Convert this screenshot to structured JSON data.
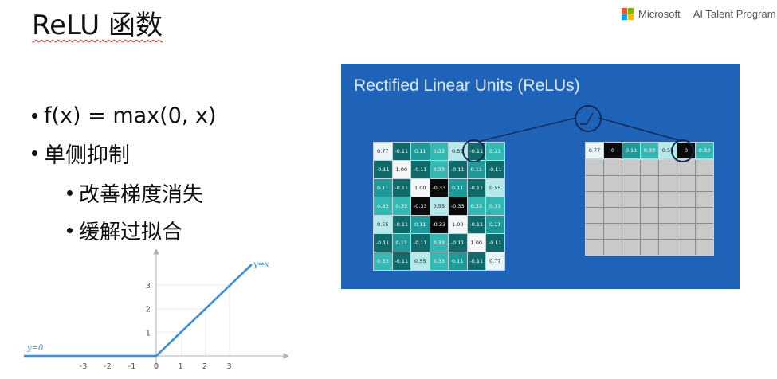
{
  "slide": {
    "title": "ReLU 函数",
    "brand": "Microsoft",
    "program": "AI Talent Program",
    "brand_colors": [
      "#f25022",
      "#7fba00",
      "#00a4ef",
      "#ffb900"
    ]
  },
  "bullets": {
    "item1": "f(x)  =  max(0, x)",
    "item2": "单侧抑制",
    "sub1": "改善梯度消失",
    "sub2": "缓解过拟合"
  },
  "plot": {
    "x_ticks": [
      "-3",
      "-2",
      "-1",
      "0",
      "1",
      "2",
      "3"
    ],
    "y_ticks": [
      "1",
      "2",
      "3"
    ],
    "label_left": "y=0",
    "label_right": "y=x",
    "line_color": "#3a8ee6"
  },
  "panel": {
    "title": "Rectified Linear Units (ReLUs)",
    "background": "#1f63b8",
    "input_matrix": [
      [
        "0.77",
        "-0.11",
        "0.11",
        "0.33",
        "0.55",
        "-0.11",
        "0.33"
      ],
      [
        "-0.11",
        "1.00",
        "-0.11",
        "0.33",
        "-0.11",
        "0.11",
        "-0.11"
      ],
      [
        "0.11",
        "-0.11",
        "1.00",
        "-0.33",
        "0.11",
        "-0.11",
        "0.55"
      ],
      [
        "0.33",
        "0.33",
        "-0.33",
        "0.55",
        "-0.33",
        "0.33",
        "0.33"
      ],
      [
        "0.55",
        "-0.11",
        "0.11",
        "-0.33",
        "1.00",
        "-0.11",
        "0.11"
      ],
      [
        "-0.11",
        "0.11",
        "-0.11",
        "0.33",
        "-0.11",
        "1.00",
        "-0.11"
      ],
      [
        "0.33",
        "-0.11",
        "0.55",
        "0.33",
        "0.11",
        "-0.11",
        "0.77"
      ]
    ],
    "output_row": [
      "0.77",
      "0",
      "0.11",
      "0.33",
      "0.55",
      "0",
      "0.33"
    ]
  }
}
